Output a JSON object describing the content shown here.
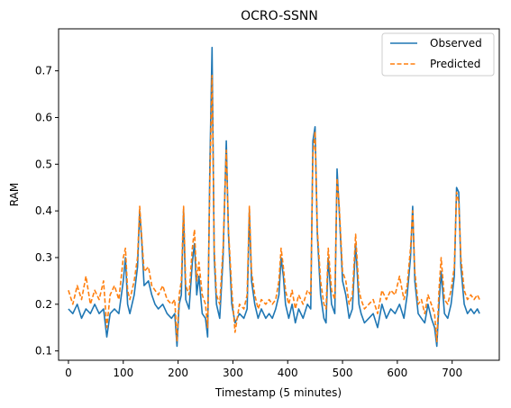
{
  "chart_data": {
    "type": "line",
    "title": "OCRO-SSNN",
    "xlabel": "Timestamp (5 minutes)",
    "ylabel": "RAM",
    "xlim": [
      -18,
      786
    ],
    "ylim": [
      0.08,
      0.79
    ],
    "xticks": [
      0,
      100,
      200,
      300,
      400,
      500,
      600,
      700
    ],
    "yticks": [
      0.1,
      0.2,
      0.3,
      0.4,
      0.5,
      0.6,
      0.7
    ],
    "xtick_labels": [
      "0",
      "100",
      "200",
      "300",
      "400",
      "500",
      "600",
      "700"
    ],
    "ytick_labels": [
      "0.1",
      "0.2",
      "0.3",
      "0.4",
      "0.5",
      "0.6",
      "0.7"
    ],
    "legend": {
      "position": "top-right",
      "entries": [
        "Observed",
        "Predicted"
      ]
    },
    "grid": false,
    "series": [
      {
        "name": "Observed",
        "color": "#1f77b4",
        "style": "solid",
        "x": [
          0,
          8,
          16,
          24,
          32,
          40,
          48,
          56,
          64,
          70,
          76,
          84,
          92,
          100,
          104,
          108,
          112,
          120,
          126,
          130,
          134,
          138,
          146,
          152,
          158,
          164,
          172,
          180,
          188,
          194,
          198,
          202,
          206,
          210,
          214,
          220,
          226,
          230,
          234,
          238,
          244,
          250,
          254,
          258,
          262,
          266,
          270,
          276,
          282,
          288,
          292,
          298,
          304,
          312,
          320,
          326,
          330,
          334,
          340,
          346,
          352,
          360,
          366,
          372,
          378,
          384,
          388,
          392,
          396,
          402,
          408,
          414,
          420,
          428,
          436,
          442,
          446,
          450,
          454,
          460,
          466,
          470,
          474,
          480,
          486,
          490,
          494,
          500,
          506,
          512,
          518,
          524,
          530,
          534,
          540,
          548,
          556,
          564,
          572,
          580,
          588,
          596,
          604,
          612,
          618,
          624,
          628,
          632,
          638,
          644,
          650,
          656,
          662,
          668,
          672,
          676,
          680,
          686,
          692,
          698,
          704,
          708,
          712,
          716,
          722,
          728,
          734,
          740,
          746,
          750
        ],
        "y": [
          0.19,
          0.18,
          0.2,
          0.17,
          0.19,
          0.18,
          0.2,
          0.18,
          0.19,
          0.13,
          0.18,
          0.19,
          0.18,
          0.25,
          0.3,
          0.2,
          0.18,
          0.22,
          0.28,
          0.4,
          0.33,
          0.24,
          0.25,
          0.22,
          0.2,
          0.19,
          0.2,
          0.18,
          0.17,
          0.18,
          0.11,
          0.2,
          0.22,
          0.4,
          0.21,
          0.19,
          0.29,
          0.33,
          0.22,
          0.26,
          0.18,
          0.17,
          0.13,
          0.5,
          0.75,
          0.3,
          0.2,
          0.17,
          0.3,
          0.55,
          0.35,
          0.2,
          0.16,
          0.18,
          0.17,
          0.19,
          0.4,
          0.25,
          0.2,
          0.17,
          0.19,
          0.17,
          0.18,
          0.17,
          0.19,
          0.22,
          0.3,
          0.26,
          0.2,
          0.17,
          0.2,
          0.16,
          0.19,
          0.17,
          0.2,
          0.19,
          0.55,
          0.58,
          0.35,
          0.22,
          0.17,
          0.16,
          0.3,
          0.2,
          0.18,
          0.49,
          0.4,
          0.25,
          0.22,
          0.17,
          0.19,
          0.33,
          0.2,
          0.18,
          0.16,
          0.17,
          0.18,
          0.15,
          0.2,
          0.17,
          0.19,
          0.18,
          0.2,
          0.17,
          0.22,
          0.3,
          0.41,
          0.25,
          0.18,
          0.17,
          0.16,
          0.2,
          0.17,
          0.15,
          0.11,
          0.2,
          0.27,
          0.18,
          0.17,
          0.2,
          0.26,
          0.45,
          0.44,
          0.28,
          0.2,
          0.18,
          0.19,
          0.18,
          0.19,
          0.18
        ]
      },
      {
        "name": "Predicted",
        "color": "#ff7f0e",
        "style": "dashed",
        "x": [
          0,
          8,
          16,
          24,
          32,
          40,
          48,
          56,
          64,
          70,
          76,
          84,
          92,
          100,
          104,
          108,
          112,
          120,
          126,
          130,
          134,
          138,
          146,
          152,
          158,
          164,
          172,
          180,
          188,
          194,
          198,
          202,
          206,
          210,
          214,
          220,
          226,
          230,
          234,
          238,
          244,
          250,
          254,
          258,
          262,
          266,
          270,
          276,
          282,
          288,
          292,
          298,
          304,
          312,
          320,
          326,
          330,
          334,
          340,
          346,
          352,
          360,
          366,
          372,
          378,
          384,
          388,
          392,
          396,
          402,
          408,
          414,
          420,
          428,
          436,
          442,
          446,
          450,
          454,
          460,
          466,
          470,
          474,
          480,
          486,
          490,
          494,
          500,
          506,
          512,
          518,
          524,
          530,
          534,
          540,
          548,
          556,
          564,
          572,
          580,
          588,
          596,
          604,
          612,
          618,
          624,
          628,
          632,
          638,
          644,
          650,
          656,
          662,
          668,
          672,
          676,
          680,
          686,
          692,
          698,
          704,
          708,
          712,
          716,
          722,
          728,
          734,
          740,
          746,
          750
        ],
        "y": [
          0.23,
          0.2,
          0.24,
          0.21,
          0.26,
          0.2,
          0.23,
          0.21,
          0.25,
          0.15,
          0.22,
          0.24,
          0.21,
          0.3,
          0.32,
          0.23,
          0.21,
          0.25,
          0.3,
          0.41,
          0.34,
          0.27,
          0.28,
          0.24,
          0.23,
          0.22,
          0.24,
          0.21,
          0.2,
          0.21,
          0.12,
          0.22,
          0.25,
          0.41,
          0.24,
          0.22,
          0.32,
          0.36,
          0.25,
          0.29,
          0.22,
          0.2,
          0.15,
          0.47,
          0.69,
          0.32,
          0.22,
          0.2,
          0.32,
          0.53,
          0.36,
          0.23,
          0.14,
          0.2,
          0.19,
          0.22,
          0.41,
          0.27,
          0.22,
          0.19,
          0.21,
          0.2,
          0.21,
          0.2,
          0.21,
          0.25,
          0.32,
          0.28,
          0.23,
          0.2,
          0.23,
          0.19,
          0.22,
          0.2,
          0.23,
          0.22,
          0.52,
          0.57,
          0.36,
          0.25,
          0.2,
          0.19,
          0.32,
          0.23,
          0.21,
          0.47,
          0.41,
          0.27,
          0.25,
          0.2,
          0.22,
          0.35,
          0.23,
          0.21,
          0.19,
          0.2,
          0.21,
          0.18,
          0.23,
          0.21,
          0.23,
          0.22,
          0.26,
          0.21,
          0.24,
          0.32,
          0.4,
          0.27,
          0.2,
          0.21,
          0.18,
          0.22,
          0.2,
          0.18,
          0.12,
          0.23,
          0.3,
          0.21,
          0.2,
          0.23,
          0.28,
          0.44,
          0.42,
          0.3,
          0.23,
          0.21,
          0.22,
          0.21,
          0.22,
          0.21
        ]
      }
    ]
  }
}
